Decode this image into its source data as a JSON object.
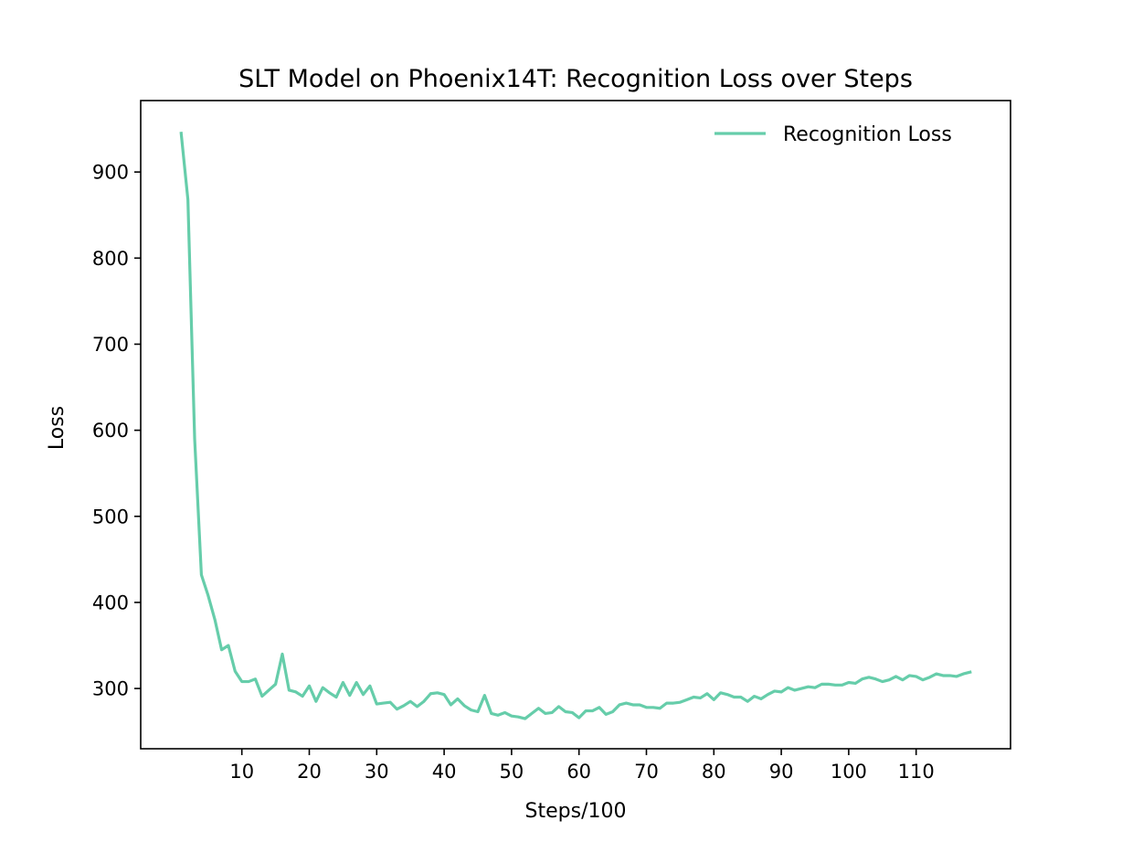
{
  "chart_data": {
    "type": "line",
    "title": "SLT Model on Phoenix14T: Recognition Loss over Steps",
    "xlabel": "Steps/100",
    "ylabel": "Loss",
    "xlim": [
      -5,
      124
    ],
    "ylim": [
      230,
      983
    ],
    "xticks": [
      10,
      20,
      30,
      40,
      50,
      60,
      70,
      80,
      90,
      100,
      110
    ],
    "yticks": [
      300,
      400,
      500,
      600,
      700,
      800,
      900
    ],
    "grid": false,
    "legend_position": "top-right",
    "series": [
      {
        "name": "Recognition Loss",
        "color": "#66cdaa",
        "x": [
          1,
          2,
          3,
          4,
          5,
          6,
          7,
          8,
          9,
          10,
          11,
          12,
          13,
          14,
          15,
          16,
          17,
          18,
          19,
          20,
          21,
          22,
          23,
          24,
          25,
          26,
          27,
          28,
          29,
          30,
          31,
          32,
          33,
          34,
          35,
          36,
          37,
          38,
          39,
          40,
          41,
          42,
          43,
          44,
          45,
          46,
          47,
          48,
          49,
          50,
          51,
          52,
          53,
          54,
          55,
          56,
          57,
          58,
          59,
          60,
          61,
          62,
          63,
          64,
          65,
          66,
          67,
          68,
          69,
          70,
          71,
          72,
          73,
          74,
          75,
          76,
          77,
          78,
          79,
          80,
          81,
          82,
          83,
          84,
          85,
          86,
          87,
          88,
          89,
          90,
          91,
          92,
          93,
          94,
          95,
          96,
          97,
          98,
          99,
          100,
          101,
          102,
          103,
          104,
          105,
          106,
          107,
          108,
          109,
          110,
          111,
          112,
          113,
          114,
          115,
          116,
          117,
          118
        ],
        "values": [
          945,
          868,
          590,
          432,
          408,
          380,
          345,
          350,
          320,
          308,
          308,
          311,
          291,
          298,
          305,
          340,
          298,
          296,
          291,
          303,
          285,
          301,
          295,
          290,
          307,
          292,
          307,
          293,
          303,
          282,
          283,
          284,
          276,
          280,
          285,
          279,
          285,
          294,
          295,
          293,
          281,
          288,
          280,
          275,
          273,
          292,
          271,
          269,
          272,
          268,
          267,
          265,
          271,
          277,
          271,
          272,
          279,
          273,
          272,
          266,
          274,
          274,
          278,
          270,
          273,
          281,
          283,
          281,
          281,
          278,
          278,
          277,
          283,
          283,
          284,
          287,
          290,
          289,
          294,
          287,
          295,
          293,
          290,
          290,
          285,
          291,
          288,
          293,
          297,
          296,
          301,
          298,
          300,
          302,
          301,
          305,
          305,
          304,
          304,
          307,
          306,
          311,
          313,
          311,
          308,
          310,
          314,
          310,
          315,
          314,
          310,
          313,
          317,
          315,
          315,
          314,
          317,
          319
        ]
      }
    ]
  }
}
